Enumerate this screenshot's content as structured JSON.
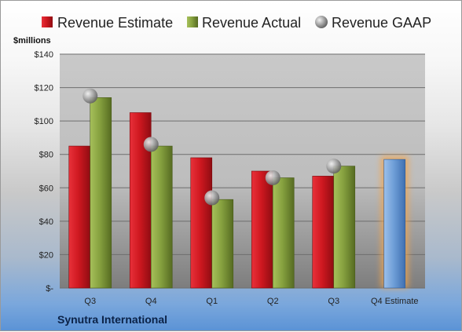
{
  "chart_data": {
    "type": "bar",
    "categories": [
      "Q3",
      "Q4",
      "Q1",
      "Q2",
      "Q3",
      "Q4 Estimate"
    ],
    "series": [
      {
        "name": "Revenue Estimate",
        "values": [
          85,
          105,
          78,
          70,
          67,
          77
        ],
        "color": "#c8141c"
      },
      {
        "name": "Revenue Actual",
        "values": [
          114,
          85,
          53,
          66,
          73,
          null
        ],
        "color": "#7f9a3a"
      },
      {
        "name": "Revenue GAAP",
        "values": [
          115,
          86,
          54,
          66,
          73,
          null
        ],
        "color": "#9a9a9a"
      }
    ],
    "highlight_color": "#6f9fd8",
    "highlight_glow": "#f4a44a",
    "ylabel": "$millions",
    "ylim": [
      0,
      140
    ],
    "yticks": [
      {
        "value": 0,
        "label": "$-"
      },
      {
        "value": 20,
        "label": "$20"
      },
      {
        "value": 40,
        "label": "$40"
      },
      {
        "value": 60,
        "label": "$60"
      },
      {
        "value": 80,
        "label": "$80"
      },
      {
        "value": 100,
        "label": "$100"
      },
      {
        "value": 120,
        "label": "$120"
      },
      {
        "value": 140,
        "label": "$140"
      }
    ],
    "grid": true,
    "legend_position": "top"
  },
  "company": "Synutra International"
}
